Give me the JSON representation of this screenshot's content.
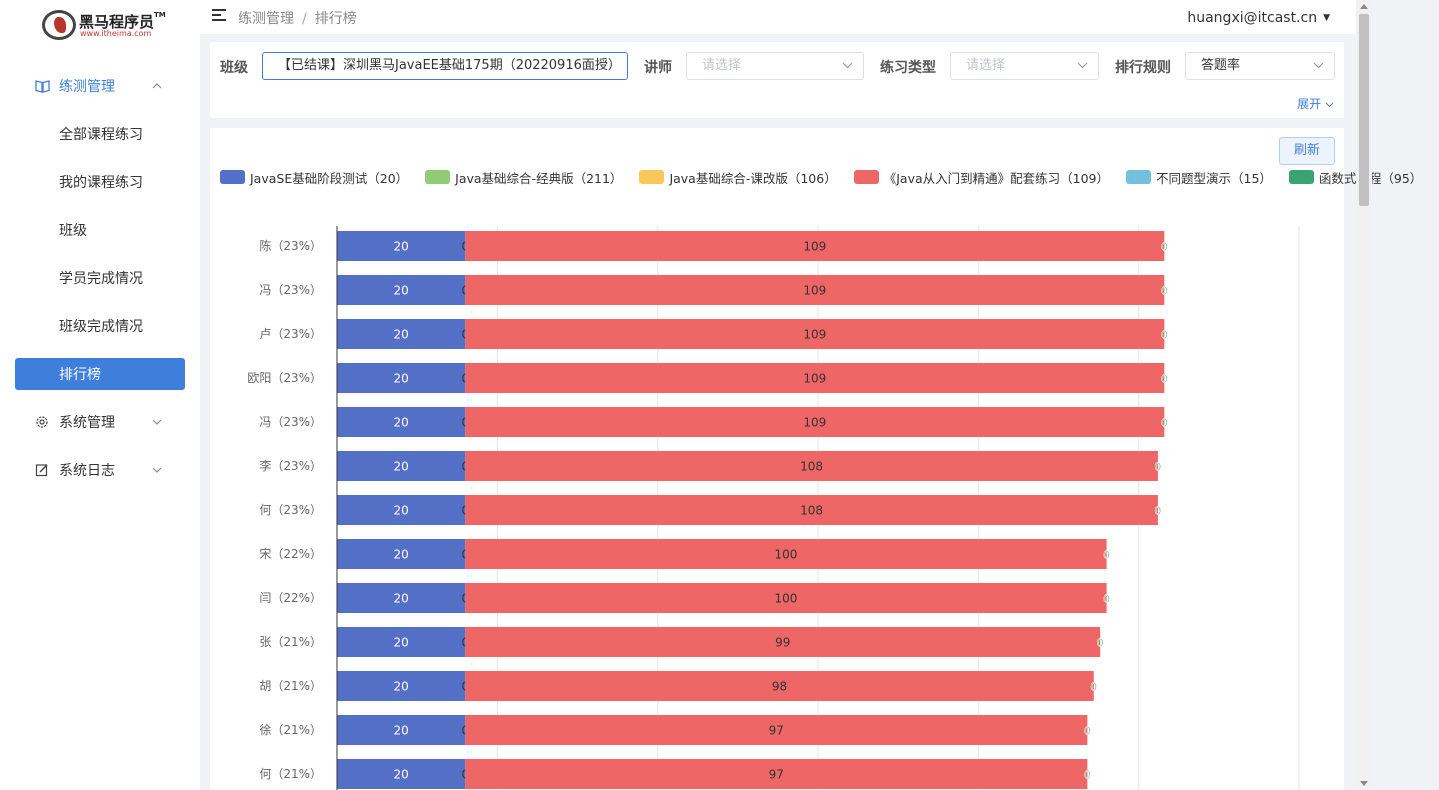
{
  "sidebar": {
    "logo": {
      "title": "黑马程序员",
      "tm": "TM",
      "subtitle": "www.itheima.com"
    },
    "groups": [
      {
        "label": "练测管理",
        "icon": "book-icon",
        "expanded": true
      },
      {
        "label": "系统管理",
        "icon": "gear-icon",
        "expanded": false
      },
      {
        "label": "系统日志",
        "icon": "edit-icon",
        "expanded": false
      }
    ],
    "items": [
      {
        "label": "全部课程练习"
      },
      {
        "label": "我的课程练习"
      },
      {
        "label": "班级"
      },
      {
        "label": "学员完成情况"
      },
      {
        "label": "班级完成情况"
      },
      {
        "label": "排行榜"
      }
    ]
  },
  "topbar": {
    "breadcrumbs": [
      "练测管理",
      "排行榜"
    ],
    "user": "huangxi@itcast.cn"
  },
  "filters": {
    "class_label": "班级",
    "class_value": "【已结课】深圳黑马JavaEE基础175期（20220916面授）",
    "teacher_label": "讲师",
    "teacher_placeholder": "请选择",
    "type_label": "练习类型",
    "type_placeholder": "请选择",
    "rule_label": "排行规则",
    "rule_value": "答题率",
    "expand_label": "展开"
  },
  "chart_panel": {
    "refresh_label": "刷新"
  },
  "chart_data": {
    "type": "bar",
    "orientation": "horizontal",
    "stacked": true,
    "show_segment_labels": true,
    "legend": [
      "JavaSE基础阶段测试（20）",
      "Java基础综合-经典版（211）",
      "Java基础综合-课改版（106）",
      "《Java从入门到精通》配套练习（109）",
      "不同题型演示（15）",
      "函数式编程（95）"
    ],
    "colors": [
      "#5470c6",
      "#91cc75",
      "#fac858",
      "#ee6666",
      "#73c0de",
      "#3ba272"
    ],
    "categories": [
      "陈（23%）",
      "冯（23%）",
      "卢（23%）",
      "欧阳（23%）",
      "冯（23%）",
      "李（23%）",
      "何（23%）",
      "宋（22%）",
      "闫（22%）",
      "张（21%）",
      "胡（21%）",
      "徐（21%）",
      "何（21%）"
    ],
    "series": [
      {
        "name": "JavaSE基础阶段测试（20）",
        "values": [
          20,
          20,
          20,
          20,
          20,
          20,
          20,
          20,
          20,
          20,
          20,
          20,
          20
        ]
      },
      {
        "name": "Java基础综合-经典版（211）",
        "values": [
          0,
          0,
          0,
          0,
          0,
          0,
          0,
          0,
          0,
          0,
          0,
          0,
          0
        ]
      },
      {
        "name": "Java基础综合-课改版（106）",
        "values": [
          0,
          0,
          0,
          0,
          0,
          0,
          0,
          0,
          0,
          0,
          0,
          0,
          0
        ]
      },
      {
        "name": "《Java从入门到精通》配套练习（109）",
        "values": [
          109,
          109,
          109,
          109,
          109,
          108,
          108,
          100,
          100,
          99,
          98,
          97,
          97
        ]
      },
      {
        "name": "不同题型演示（15）",
        "values": [
          0,
          0,
          0,
          0,
          0,
          0,
          0,
          0,
          0,
          0,
          0,
          0,
          0
        ]
      },
      {
        "name": "函数式编程（95）",
        "values": [
          0,
          0,
          0,
          0,
          0,
          0,
          0,
          0,
          0,
          0,
          0,
          0,
          0
        ]
      }
    ],
    "xlim": [
      0,
      150
    ],
    "grid": true,
    "legend_position": "top-left"
  }
}
